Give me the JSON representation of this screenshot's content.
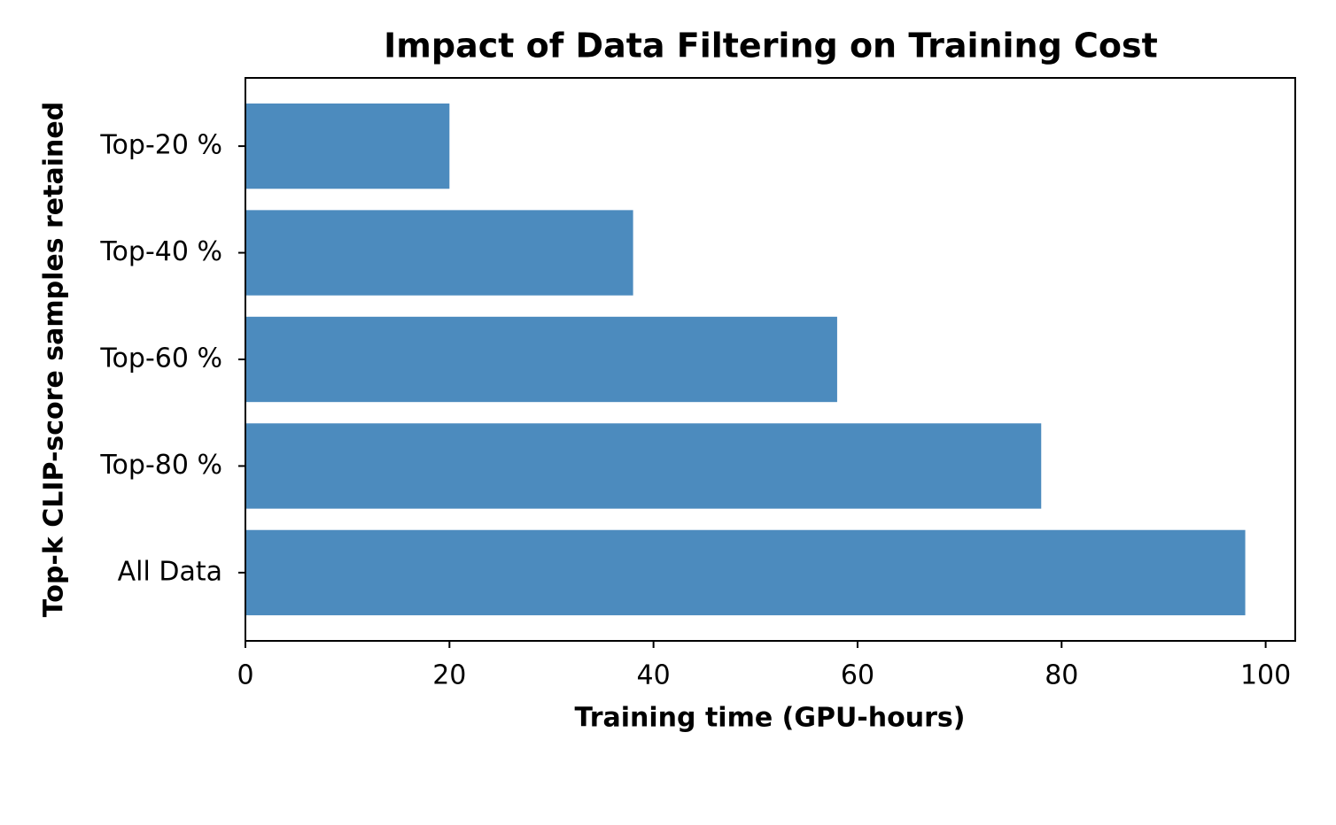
{
  "chart_data": {
    "type": "barh",
    "title": "Impact of Data Filtering on Training Cost",
    "x_label": "Training time (GPU-hours)",
    "y_label": "Top-k CLIP-score samples retained",
    "categories": [
      "Top-20 %",
      "Top-40 %",
      "Top-60 %",
      "Top-80 %",
      "All Data"
    ],
    "values": [
      20,
      38,
      58,
      78,
      98
    ],
    "color": "#4c8bbe",
    "xlim": [
      0,
      102.9
    ],
    "xticks": [
      0,
      20,
      40,
      60,
      80,
      100
    ],
    "grid": false
  }
}
